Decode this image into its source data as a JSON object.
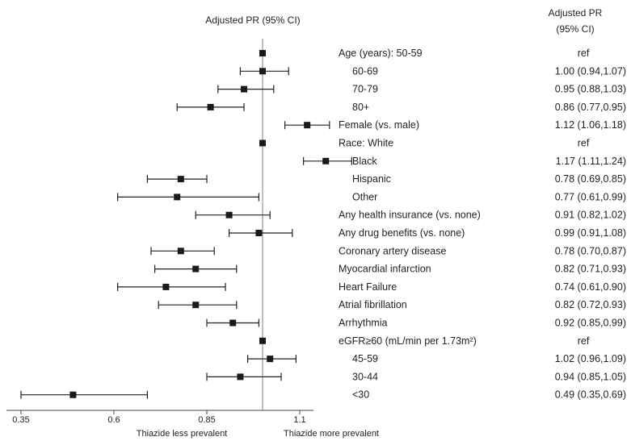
{
  "chart_data": {
    "type": "forest",
    "plot_title": "Adjusted PR (95% CI)",
    "column_header": [
      "Adjusted PR",
      "(95% CI)"
    ],
    "x_ticks": [
      0.35,
      0.6,
      0.85,
      1.1
    ],
    "x_tick_labels": [
      "0.35",
      "0.6",
      "0.85",
      "1.1"
    ],
    "xlim": [
      0.35,
      1.2
    ],
    "reference_line": 1.0,
    "left_note": "Thiazide less prevalent",
    "right_note": "Thiazide more prevalent",
    "rows": [
      {
        "label": "Age (years): 50-59",
        "indent": false,
        "pr": 1.0,
        "lo": null,
        "hi": null,
        "text": "ref"
      },
      {
        "label": "60-69",
        "indent": true,
        "pr": 1.0,
        "lo": 0.94,
        "hi": 1.07,
        "text": "1.00 (0.94,1.07)"
      },
      {
        "label": "70-79",
        "indent": true,
        "pr": 0.95,
        "lo": 0.88,
        "hi": 1.03,
        "text": "0.95 (0.88,1.03)"
      },
      {
        "label": "80+",
        "indent": true,
        "pr": 0.86,
        "lo": 0.77,
        "hi": 0.95,
        "text": "0.86 (0.77,0.95)"
      },
      {
        "label": "Female (vs. male)",
        "indent": false,
        "pr": 1.12,
        "lo": 1.06,
        "hi": 1.18,
        "text": "1.12 (1.06,1.18)"
      },
      {
        "label": "Race: White",
        "indent": false,
        "pr": 1.0,
        "lo": null,
        "hi": null,
        "text": "ref"
      },
      {
        "label": "Black",
        "indent": true,
        "pr": 1.17,
        "lo": 1.11,
        "hi": 1.24,
        "text": "1.17 (1.11,1.24)"
      },
      {
        "label": "Hispanic",
        "indent": true,
        "pr": 0.78,
        "lo": 0.69,
        "hi": 0.85,
        "text": "0.78 (0.69,0.85)"
      },
      {
        "label": "Other",
        "indent": true,
        "pr": 0.77,
        "lo": 0.61,
        "hi": 0.99,
        "text": "0.77 (0.61,0.99)"
      },
      {
        "label": "Any health insurance (vs. none)",
        "indent": false,
        "pr": 0.91,
        "lo": 0.82,
        "hi": 1.02,
        "text": "0.91 (0.82,1.02)"
      },
      {
        "label": "Any drug benefits (vs. none)",
        "indent": false,
        "pr": 0.99,
        "lo": 0.91,
        "hi": 1.08,
        "text": "0.99 (0.91,1.08)"
      },
      {
        "label": "Coronary artery disease",
        "indent": false,
        "pr": 0.78,
        "lo": 0.7,
        "hi": 0.87,
        "text": "0.78 (0.70,0.87)"
      },
      {
        "label": "Myocardial infarction",
        "indent": false,
        "pr": 0.82,
        "lo": 0.71,
        "hi": 0.93,
        "text": "0.82 (0.71,0.93)"
      },
      {
        "label": "Heart Failure",
        "indent": false,
        "pr": 0.74,
        "lo": 0.61,
        "hi": 0.9,
        "text": "0.74 (0.61,0.90)"
      },
      {
        "label": "Atrial fibrillation",
        "indent": false,
        "pr": 0.82,
        "lo": 0.72,
        "hi": 0.93,
        "text": "0.82 (0.72,0.93)"
      },
      {
        "label": "Arrhythmia",
        "indent": false,
        "pr": 0.92,
        "lo": 0.85,
        "hi": 0.99,
        "text": "0.92 (0.85,0.99)"
      },
      {
        "label": "eGFR≥60 (mL/min per 1.73m²)",
        "indent": false,
        "pr": 1.0,
        "lo": null,
        "hi": null,
        "text": "ref"
      },
      {
        "label": "45-59",
        "indent": true,
        "pr": 1.02,
        "lo": 0.96,
        "hi": 1.09,
        "text": "1.02 (0.96,1.09)"
      },
      {
        "label": "30-44",
        "indent": true,
        "pr": 0.94,
        "lo": 0.85,
        "hi": 1.05,
        "text": "0.94 (0.85,1.05)"
      },
      {
        "label": "<30",
        "indent": true,
        "pr": 0.49,
        "lo": 0.35,
        "hi": 0.69,
        "text": "0.49 (0.35,0.69)"
      }
    ]
  }
}
